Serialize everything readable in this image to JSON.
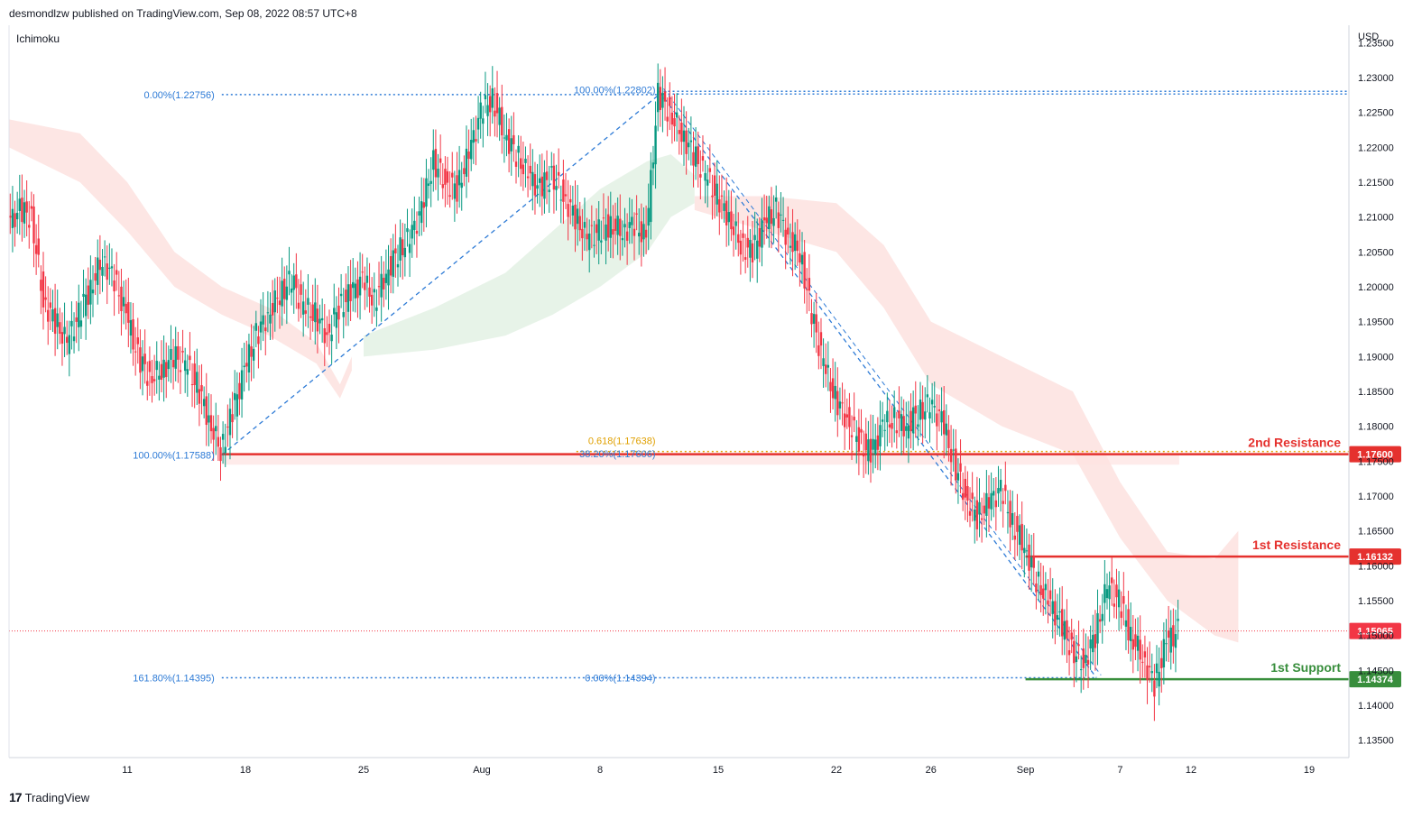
{
  "header": {
    "attribution": "desmondlzw published on TradingView.com, Sep 08, 2022 08:57 UTC+8",
    "indicator": "Ichimoku",
    "footer_brand": "TradingView",
    "footer_mark": "17"
  },
  "chart_data": {
    "type": "candlestick",
    "symbol_currency": "USD",
    "y_range": [
      1.1325,
      1.2375
    ],
    "y_ticks": [
      1.135,
      1.14,
      1.145,
      1.15,
      1.155,
      1.16,
      1.165,
      1.17,
      1.175,
      1.18,
      1.185,
      1.19,
      1.195,
      1.2,
      1.205,
      1.21,
      1.215,
      1.22,
      1.225,
      1.23,
      1.235
    ],
    "y_tick_labels": [
      "1.13500",
      "1.14000",
      "1.14500",
      "1.15000",
      "1.15500",
      "1.16000",
      "1.16500",
      "1.17000",
      "1.17500",
      "1.18000",
      "1.18500",
      "1.19000",
      "1.19500",
      "1.20000",
      "1.20500",
      "1.21000",
      "1.21500",
      "1.22000",
      "1.22500",
      "1.23000",
      "1.23500"
    ],
    "x_range": [
      0,
      118
    ],
    "x_ticks": [
      {
        "label": "11",
        "t": 10
      },
      {
        "label": "18",
        "t": 20
      },
      {
        "label": "25",
        "t": 30
      },
      {
        "label": "Aug",
        "t": 40
      },
      {
        "label": "8",
        "t": 50
      },
      {
        "label": "15",
        "t": 60
      },
      {
        "label": "22",
        "t": 70
      },
      {
        "label": "26",
        "t": 78
      },
      {
        "label": "Sep",
        "t": 86
      },
      {
        "label": "7",
        "t": 94
      },
      {
        "label": "12",
        "t": 100
      },
      {
        "label": "19",
        "t": 110
      }
    ],
    "close_path": [
      [
        0,
        1.209
      ],
      [
        1,
        1.211
      ],
      [
        2,
        1.21
      ],
      [
        3,
        1.198
      ],
      [
        4,
        1.195
      ],
      [
        5,
        1.192
      ],
      [
        6,
        1.196
      ],
      [
        7,
        1.2
      ],
      [
        8,
        1.204
      ],
      [
        9,
        1.201
      ],
      [
        10,
        1.196
      ],
      [
        11,
        1.19
      ],
      [
        12,
        1.187
      ],
      [
        13,
        1.188
      ],
      [
        14,
        1.19
      ],
      [
        15,
        1.189
      ],
      [
        16,
        1.186
      ],
      [
        17,
        1.181
      ],
      [
        18,
        1.1765
      ],
      [
        19,
        1.182
      ],
      [
        20,
        1.188
      ],
      [
        21,
        1.193
      ],
      [
        22,
        1.196
      ],
      [
        23,
        1.199
      ],
      [
        24,
        1.201
      ],
      [
        25,
        1.197
      ],
      [
        26,
        1.196
      ],
      [
        27,
        1.193
      ],
      [
        28,
        1.197
      ],
      [
        29,
        1.199
      ],
      [
        30,
        1.201
      ],
      [
        31,
        1.198
      ],
      [
        32,
        1.202
      ],
      [
        33,
        1.205
      ],
      [
        34,
        1.207
      ],
      [
        35,
        1.211
      ],
      [
        36,
        1.218
      ],
      [
        37,
        1.215
      ],
      [
        38,
        1.214
      ],
      [
        39,
        1.219
      ],
      [
        40,
        1.225
      ],
      [
        41,
        1.227
      ],
      [
        42,
        1.222
      ],
      [
        43,
        1.219
      ],
      [
        44,
        1.216
      ],
      [
        45,
        1.214
      ],
      [
        46,
        1.216
      ],
      [
        47,
        1.213
      ],
      [
        48,
        1.21
      ],
      [
        49,
        1.207
      ],
      [
        50,
        1.208
      ],
      [
        51,
        1.209
      ],
      [
        52,
        1.208
      ],
      [
        53,
        1.209
      ],
      [
        54,
        1.207
      ],
      [
        55,
        1.2275
      ],
      [
        56,
        1.225
      ],
      [
        57,
        1.222
      ],
      [
        58,
        1.219
      ],
      [
        59,
        1.216
      ],
      [
        60,
        1.213
      ],
      [
        61,
        1.21
      ],
      [
        62,
        1.206
      ],
      [
        63,
        1.205
      ],
      [
        64,
        1.209
      ],
      [
        65,
        1.211
      ],
      [
        66,
        1.207
      ],
      [
        67,
        1.205
      ],
      [
        68,
        1.196
      ],
      [
        69,
        1.189
      ],
      [
        70,
        1.184
      ],
      [
        71,
        1.181
      ],
      [
        72,
        1.178
      ],
      [
        73,
        1.176
      ],
      [
        74,
        1.18
      ],
      [
        75,
        1.181
      ],
      [
        76,
        1.18
      ],
      [
        77,
        1.182
      ],
      [
        78,
        1.183
      ],
      [
        79,
        1.181
      ],
      [
        80,
        1.175
      ],
      [
        81,
        1.17
      ],
      [
        82,
        1.167
      ],
      [
        83,
        1.169
      ],
      [
        84,
        1.171
      ],
      [
        85,
        1.166
      ],
      [
        86,
        1.163
      ],
      [
        87,
        1.158
      ],
      [
        88,
        1.155
      ],
      [
        89,
        1.152
      ],
      [
        90,
        1.148
      ],
      [
        91,
        1.146
      ],
      [
        92,
        1.15
      ],
      [
        93,
        1.157
      ],
      [
        94,
        1.155
      ],
      [
        95,
        1.15
      ],
      [
        96,
        1.147
      ],
      [
        97,
        1.143
      ],
      [
        98,
        1.149
      ],
      [
        99,
        1.1507
      ]
    ],
    "cloud_bands": [
      {
        "color": "red",
        "points": [
          [
            0,
            1.224
          ],
          [
            6,
            1.222
          ],
          [
            10,
            1.215
          ],
          [
            14,
            1.205
          ],
          [
            18,
            1.2
          ],
          [
            22,
            1.197
          ],
          [
            26,
            1.192
          ],
          [
            28,
            1.186
          ],
          [
            29,
            1.19
          ]
        ],
        "base": [
          [
            0,
            1.22
          ],
          [
            6,
            1.215
          ],
          [
            10,
            1.208
          ],
          [
            14,
            1.2
          ],
          [
            18,
            1.196
          ],
          [
            22,
            1.193
          ],
          [
            26,
            1.189
          ],
          [
            28,
            1.184
          ],
          [
            29,
            1.188
          ]
        ]
      },
      {
        "color": "green",
        "points": [
          [
            30,
            1.193
          ],
          [
            36,
            1.197
          ],
          [
            42,
            1.202
          ],
          [
            46,
            1.208
          ],
          [
            50,
            1.214
          ],
          [
            54,
            1.218
          ],
          [
            56,
            1.219
          ],
          [
            58,
            1.216
          ]
        ],
        "base": [
          [
            30,
            1.19
          ],
          [
            36,
            1.191
          ],
          [
            42,
            1.193
          ],
          [
            46,
            1.196
          ],
          [
            50,
            1.2
          ],
          [
            54,
            1.205
          ],
          [
            56,
            1.21
          ],
          [
            58,
            1.212
          ]
        ]
      },
      {
        "color": "red",
        "points": [
          [
            58,
            1.213
          ],
          [
            64,
            1.213
          ],
          [
            70,
            1.212
          ],
          [
            74,
            1.206
          ],
          [
            78,
            1.195
          ],
          [
            84,
            1.19
          ],
          [
            90,
            1.185
          ],
          [
            94,
            1.172
          ],
          [
            98,
            1.162
          ],
          [
            102,
            1.161
          ],
          [
            104,
            1.165
          ]
        ],
        "base": [
          [
            58,
            1.211
          ],
          [
            64,
            1.208
          ],
          [
            70,
            1.205
          ],
          [
            74,
            1.197
          ],
          [
            78,
            1.186
          ],
          [
            84,
            1.18
          ],
          [
            90,
            1.176
          ],
          [
            94,
            1.164
          ],
          [
            98,
            1.155
          ],
          [
            102,
            1.15
          ],
          [
            104,
            1.149
          ]
        ]
      }
    ],
    "fib_retracement_up": {
      "start": {
        "t": 18,
        "price": 1.17588,
        "label": "100.00%(1.17588)"
      },
      "end": {
        "t": 55,
        "price": 1.22756,
        "label": "0.00%(1.22756)"
      },
      "ext_label": "161.80%(1.14395)",
      "ext_price": 1.14395
    },
    "fib_retracement_down": {
      "start": {
        "t": 55,
        "price": 1.22802,
        "label": "100.00%(1.22802)"
      },
      "end": {
        "t": 92,
        "price": 1.14394,
        "label": "0.00%(1.14394)"
      },
      "level_382_label": "38.20%(1.17606)",
      "level_382": 1.17606,
      "level_618_label": "0.618(1.17638)",
      "level_618": 1.17638
    },
    "levels": [
      {
        "name": "2nd Resistance",
        "price": 1.176,
        "price_label": "1.17600",
        "color": "#e5312e",
        "start_t": 18
      },
      {
        "name": "1st Resistance",
        "price": 1.16132,
        "price_label": "1.16132",
        "color": "#e5312e",
        "start_t": 86
      },
      {
        "name": "1st Support",
        "price": 1.14374,
        "price_label": "1.14374",
        "color": "#388e3c",
        "start_t": 86
      }
    ],
    "current_price": {
      "price": 1.15065,
      "label": "1.15065",
      "color": "#f23645"
    },
    "colors": {
      "up": "#089981",
      "down": "#f23645",
      "cloud_red": "#fde3e1",
      "cloud_green": "#e4f2e6",
      "fib": "#2e7bd6",
      "fib_618": "#e0a000",
      "axis_text": "#131722",
      "grid": "#e6e6e6"
    }
  }
}
